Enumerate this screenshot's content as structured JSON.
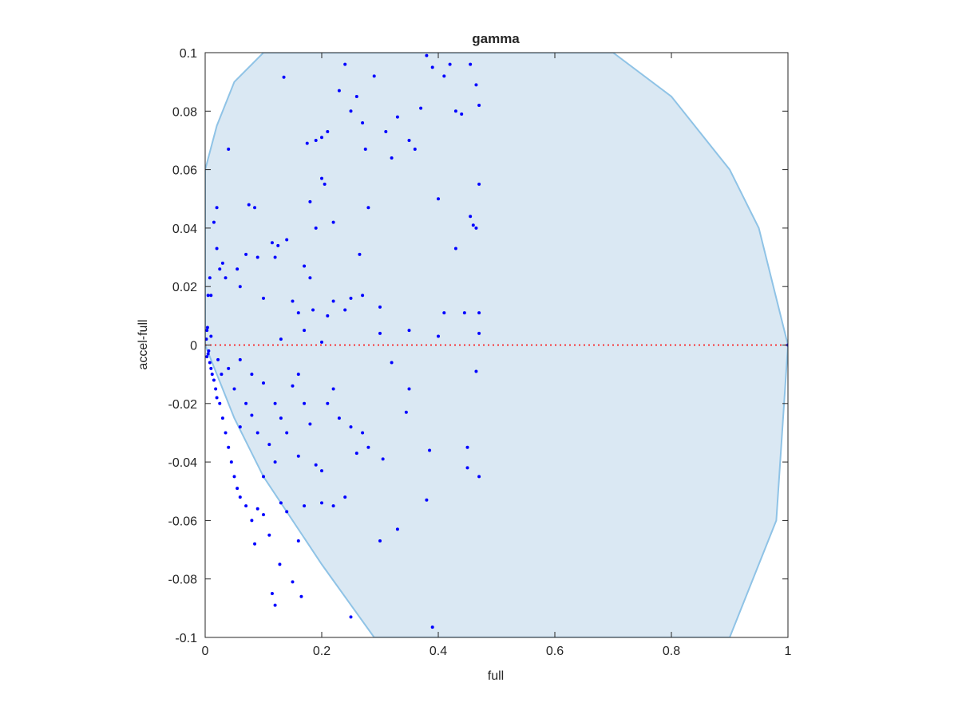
{
  "chart_data": {
    "type": "scatter",
    "title": "gamma",
    "x_label": "full",
    "y_label": "accel-full",
    "xlim": [
      0,
      1
    ],
    "ylim": [
      -0.1,
      0.1
    ],
    "xticks": [
      0,
      0.2,
      0.4,
      0.6,
      0.8,
      1
    ],
    "yticks": [
      -0.1,
      -0.08,
      -0.06,
      -0.04,
      -0.02,
      0,
      0.02,
      0.04,
      0.06,
      0.08,
      0.1
    ],
    "region": {
      "color": "#dae8f3",
      "edge_color": "#8fc3e6",
      "x": [
        0,
        0.02,
        0.05,
        0.1,
        0.7,
        0.8,
        0.9,
        0.95,
        1,
        0.98,
        0.9,
        0.29,
        0.2,
        0.1,
        0.05,
        0.02,
        0
      ],
      "y": [
        0.06,
        0.075,
        0.09,
        0.1,
        0.1,
        0.085,
        0.06,
        0.04,
        0,
        -0.06,
        -0.1,
        -0.1,
        -0.075,
        -0.045,
        -0.025,
        -0.01,
        0
      ]
    },
    "reference_line": {
      "color": "#ff0000",
      "x": [
        0,
        1
      ],
      "y": [
        0,
        0
      ]
    },
    "points": {
      "color": "#0000ff",
      "x": [
        0.003,
        0.005,
        0.002,
        0.008,
        0.01,
        0.004,
        0.012,
        0.015,
        0.006,
        0.003,
        0.018,
        0.02,
        0.025,
        0.03,
        0.022,
        0.01,
        0.028,
        0.035,
        0.04,
        0.045,
        0.05,
        0.055,
        0.06,
        0.07,
        0.08,
        0.085,
        0.09,
        0.1,
        0.11,
        0.115,
        0.12,
        0.128,
        0.15,
        0.165,
        0.16,
        0.04,
        0.02,
        0.015,
        0.02,
        0.03,
        0.01,
        0.005,
        0.008,
        0.025,
        0.035,
        0.055,
        0.06,
        0.07,
        0.075,
        0.085,
        0.09,
        0.1,
        0.115,
        0.12,
        0.125,
        0.14,
        0.135,
        0.15,
        0.16,
        0.17,
        0.175,
        0.18,
        0.19,
        0.2,
        0.21,
        0.19,
        0.2,
        0.205,
        0.22,
        0.23,
        0.24,
        0.25,
        0.26,
        0.265,
        0.27,
        0.275,
        0.28,
        0.29,
        0.3,
        0.31,
        0.32,
        0.33,
        0.35,
        0.36,
        0.37,
        0.38,
        0.39,
        0.4,
        0.41,
        0.42,
        0.43,
        0.44,
        0.455,
        0.465,
        0.47,
        0.47,
        0.455,
        0.46,
        0.465,
        0.43,
        0.445,
        0.41,
        0.47,
        0.47,
        0.4,
        0.35,
        0.3,
        0.27,
        0.25,
        0.24,
        0.21,
        0.22,
        0.18,
        0.185,
        0.17,
        0.2,
        0.13,
        0.06,
        0.08,
        0.1,
        0.12,
        0.13,
        0.14,
        0.15,
        0.16,
        0.17,
        0.18,
        0.19,
        0.2,
        0.21,
        0.22,
        0.23,
        0.25,
        0.26,
        0.27,
        0.28,
        0.3,
        0.305,
        0.33,
        0.345,
        0.35,
        0.38,
        0.385,
        0.39,
        0.45,
        0.45,
        0.47,
        0.465,
        0.32,
        0.24,
        0.22,
        0.2,
        0.17,
        0.14,
        0.13,
        0.16,
        0.12,
        0.11,
        0.1,
        0.09,
        0.07,
        0.05,
        0.04,
        0.25,
        0.08,
        0.06,
        1
      ],
      "y": [
        0.005,
        -0.003,
        0.002,
        -0.006,
        -0.008,
        0.006,
        -0.01,
        -0.012,
        -0.002,
        -0.004,
        -0.015,
        -0.018,
        -0.02,
        -0.025,
        -0.005,
        0.003,
        -0.01,
        -0.03,
        -0.035,
        -0.04,
        -0.045,
        -0.049,
        -0.052,
        -0.055,
        -0.06,
        -0.068,
        -0.056,
        -0.058,
        -0.065,
        -0.085,
        -0.089,
        -0.075,
        -0.081,
        -0.086,
        -0.067,
        0.067,
        0.047,
        0.042,
        0.033,
        0.028,
        0.017,
        0.017,
        0.023,
        0.026,
        0.023,
        0.026,
        0.02,
        0.031,
        0.048,
        0.047,
        0.03,
        0.016,
        0.035,
        0.03,
        0.034,
        0.036,
        0.0916,
        0.015,
        0.011,
        0.027,
        0.069,
        0.049,
        0.07,
        0.071,
        0.073,
        0.04,
        0.057,
        0.055,
        0.042,
        0.087,
        0.096,
        0.08,
        0.085,
        0.031,
        0.076,
        0.067,
        0.047,
        0.092,
        0.013,
        0.073,
        0.064,
        0.078,
        0.07,
        0.067,
        0.081,
        0.099,
        0.095,
        0.05,
        0.092,
        0.096,
        0.08,
        0.079,
        0.096,
        0.089,
        0.082,
        0.055,
        0.044,
        0.041,
        0.04,
        0.033,
        0.011,
        0.011,
        0.011,
        0.004,
        0.003,
        0.005,
        0.004,
        0.017,
        0.016,
        0.012,
        0.01,
        0.015,
        0.023,
        0.012,
        0.005,
        0.001,
        0.002,
        -0.005,
        -0.01,
        -0.013,
        -0.02,
        -0.025,
        -0.03,
        -0.014,
        -0.01,
        -0.02,
        -0.027,
        -0.041,
        -0.043,
        -0.02,
        -0.015,
        -0.025,
        -0.028,
        -0.037,
        -0.03,
        -0.035,
        -0.067,
        -0.039,
        -0.063,
        -0.023,
        -0.015,
        -0.053,
        -0.036,
        -0.0965,
        -0.035,
        -0.042,
        -0.045,
        -0.009,
        -0.006,
        -0.052,
        -0.055,
        -0.054,
        -0.055,
        -0.057,
        -0.054,
        -0.038,
        -0.04,
        -0.034,
        -0.045,
        -0.03,
        -0.02,
        -0.015,
        -0.008,
        -0.093,
        -0.024,
        -0.028,
        0
      ]
    }
  }
}
